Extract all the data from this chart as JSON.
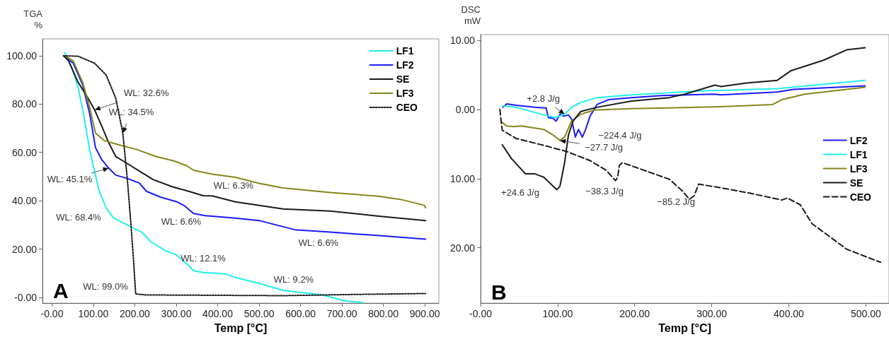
{
  "chart_data": [
    {
      "type": "line",
      "title": "A",
      "xlabel": "Temp [°C]",
      "ylabel": "TGA\n%",
      "xlim": [
        -23,
        934
      ],
      "ylim": [
        -2.4,
        107
      ],
      "xticks": [
        {
          "value": 0,
          "label": "-0.00"
        },
        {
          "value": 100,
          "label": "100.00"
        },
        {
          "value": 200,
          "label": "200.00"
        },
        {
          "value": 300,
          "label": "300.00"
        },
        {
          "value": 400,
          "label": "400.00"
        },
        {
          "value": 500,
          "label": "500.00"
        },
        {
          "value": 600,
          "label": "600.00"
        },
        {
          "value": 700,
          "label": "700.00"
        },
        {
          "value": 800,
          "label": "800.00"
        },
        {
          "value": 900,
          "label": "900.00"
        }
      ],
      "yticks": [
        {
          "value": 0,
          "label": "-0.00"
        },
        {
          "value": 20,
          "label": "20.00"
        },
        {
          "value": 40,
          "label": "40.00"
        },
        {
          "value": 60,
          "label": "60.00"
        },
        {
          "value": 80,
          "label": "80.00"
        },
        {
          "value": 100,
          "label": "100.00"
        }
      ],
      "grid": false,
      "legend": "top right",
      "marker": "none",
      "line_style": "solid",
      "series": [
        {
          "name": "LF1",
          "color": "#22eeee",
          "x": [
            31,
            46,
            63,
            77,
            91,
            103,
            114,
            131,
            148,
            188,
            217,
            239,
            274,
            302,
            325,
            342,
            370,
            387,
            421,
            439,
            500,
            558,
            654,
            706,
            751
          ],
          "values": [
            101.3,
            96,
            87,
            75,
            61,
            52,
            44,
            37,
            33,
            29.4,
            27,
            23,
            19.3,
            17.4,
            14,
            11,
            10.1,
            10.1,
            9.6,
            8.4,
            5.8,
            2.9,
            1,
            -1.4,
            -2.2
          ]
        },
        {
          "name": "LF2",
          "color": "#1a1aff",
          "x": [
            28,
            51,
            74,
            91,
            105,
            120,
            137,
            154,
            182,
            211,
            228,
            262,
            302,
            319,
            342,
            370,
            443,
            500,
            586,
            672,
            785,
            902
          ],
          "values": [
            100,
            97,
            88,
            76,
            62,
            57,
            53.5,
            50.6,
            49.2,
            47.3,
            43.9,
            41.5,
            39.5,
            38,
            34.7,
            33.8,
            32.8,
            31.8,
            28,
            27,
            25.6,
            24.1
          ]
        },
        {
          "name": "SE",
          "color": "#1a1a1a",
          "x": [
            28,
            40,
            63,
            85,
            103,
            120,
            137,
            154,
            177,
            217,
            245,
            290,
            330,
            365,
            387,
            443,
            558,
            672,
            785,
            902
          ],
          "values": [
            100,
            97.9,
            89,
            83,
            77.6,
            70.9,
            64,
            58.3,
            55.9,
            51.6,
            48.7,
            45.8,
            43.9,
            42.1,
            42,
            39.5,
            36.6,
            35.7,
            33.7,
            31.8
          ]
        },
        {
          "name": "LF3",
          "color": "#85851a",
          "x": [
            31,
            51,
            74,
            91,
            105,
            125,
            160,
            205,
            251,
            296,
            325,
            342,
            370,
            387,
            443,
            500,
            558,
            672,
            785,
            843,
            899,
            902
          ],
          "values": [
            100,
            97.9,
            89,
            78.6,
            68,
            65,
            63.2,
            61.2,
            58.3,
            56.4,
            54.5,
            52.6,
            51.6,
            51,
            49.7,
            47.2,
            45.3,
            43.4,
            41.9,
            40.5,
            38.1,
            37.1
          ]
        },
        {
          "name": "CEO",
          "color": "#1a1a1a",
          "line_style": "dotted",
          "x": [
            28,
            63,
            103,
            131,
            154,
            171,
            182,
            191,
            197,
            202,
            228,
            558,
            729,
            902
          ],
          "values": [
            100,
            99.8,
            96.9,
            92,
            82.4,
            68,
            48.7,
            29.4,
            15,
            1.4,
            1,
            0.7,
            1.2,
            1.6
          ]
        }
      ],
      "annotations": [
        {
          "text": "WL: 32.6%",
          "x": 103,
          "y": 77.6
        },
        {
          "text": "WL: 34.5%",
          "x": 171,
          "y": 68
        },
        {
          "text": "WL: 45.1%",
          "x": 137,
          "y": 53.5
        },
        "WL: 68.4%",
        "WL: 6.6%",
        "WL: 12.1%",
        "WL: 99.0%",
        "WL: 6.3%",
        "WL: 6.6%",
        "WL: 9.2%"
      ]
    },
    {
      "type": "line",
      "title": "B",
      "xlabel": "Temp [°C]",
      "ylabel": "DSC\nmW",
      "xlim": [
        0,
        530
      ],
      "ylim": [
        -28,
        10.8
      ],
      "xticks": [
        {
          "value": 0,
          "label": "-0.00"
        },
        {
          "value": 100,
          "label": "100.00"
        },
        {
          "value": 200,
          "label": "200.00"
        },
        {
          "value": 300,
          "label": "300.00"
        },
        {
          "value": 400,
          "label": "400.00"
        },
        {
          "value": 500,
          "label": "500.00"
        }
      ],
      "yticks": [
        {
          "value": -20,
          "label": "20.00"
        },
        {
          "value": -10,
          "label": "10.00"
        },
        {
          "value": 0,
          "label": "0.00"
        },
        {
          "value": 10,
          "label": "10.00"
        }
      ],
      "grid": false,
      "legend": "right",
      "marker": "none",
      "line_style": "solid",
      "series": [
        {
          "name": "LF2",
          "color": "#1a1aff",
          "x": [
            29,
            34,
            46,
            70,
            85,
            88,
            94,
            98,
            103,
            108,
            114,
            118,
            123,
            127,
            132,
            136,
            142,
            151,
            166,
            196,
            235,
            304,
            312,
            385,
            406,
            499
          ],
          "values": [
            0.3,
            0.8,
            0.6,
            0.3,
            0.2,
            -1.2,
            -1.3,
            -1.7,
            -0.7,
            -1.0,
            -0.8,
            -1.4,
            -4.0,
            -2.9,
            -4.0,
            -3.0,
            -1.0,
            0.7,
            1.4,
            1.7,
            2.0,
            2.2,
            2.1,
            2.5,
            2.9,
            3.4
          ]
        },
        {
          "name": "LF1",
          "color": "#22eeee",
          "x": [
            29,
            46,
            82,
            97,
            109,
            118,
            130,
            151,
            196,
            245,
            295,
            385,
            499
          ],
          "values": [
            0.5,
            0.3,
            -0.8,
            -1.2,
            -0.7,
            0.3,
            1.0,
            1.7,
            2.1,
            2.4,
            2.7,
            3.0,
            4.2
          ]
        },
        {
          "name": "LF3",
          "color": "#85851a",
          "x": [
            28,
            34,
            43,
            52,
            82,
            94,
            103,
            109,
            118,
            130,
            148,
            196,
            245,
            312,
            379,
            391,
            421,
            499
          ],
          "values": [
            -1.9,
            -2.4,
            -2.5,
            -2.4,
            -2.9,
            -3.7,
            -4.5,
            -4.0,
            -1.7,
            -0.7,
            -0.1,
            0.1,
            0.2,
            0.4,
            0.7,
            1.4,
            2.2,
            3.2
          ]
        },
        {
          "name": "SE",
          "color": "#1a1a1a",
          "x": [
            28,
            40,
            58,
            70,
            82,
            94,
            99,
            103,
            109,
            114,
            120,
            130,
            151,
            196,
            245,
            265,
            304,
            312,
            345,
            385,
            403,
            445,
            475,
            499
          ],
          "values": [
            -5.1,
            -7.1,
            -9.3,
            -9.3,
            -9.8,
            -11.1,
            -11.6,
            -11.1,
            -7.7,
            -3.7,
            -1.7,
            -0.3,
            0.3,
            1.2,
            1.7,
            2.2,
            3.5,
            3.3,
            3.8,
            4.2,
            5.6,
            7.1,
            8.6,
            8.9
          ]
        },
        {
          "name": "CEO",
          "color": "#1a1a1a",
          "line_style": "dashed",
          "x": [
            25,
            28,
            46,
            82,
            112,
            142,
            163,
            175,
            178,
            180,
            184,
            245,
            262,
            271,
            277,
            283,
            310,
            349,
            391,
            398,
            415,
            430,
            475,
            519
          ],
          "values": [
            0,
            -3.0,
            -4.2,
            -5.2,
            -6.1,
            -7.4,
            -8.8,
            -10.3,
            -9.8,
            -8.1,
            -7.7,
            -10.1,
            -11.8,
            -13.0,
            -12.5,
            -10.8,
            -11.3,
            -12.1,
            -13.1,
            -12.8,
            -13.8,
            -16.5,
            -20.2,
            -22.1
          ]
        }
      ],
      "annotations": [
        {
          "text": "+2.8 J/g",
          "x": 109,
          "y": -0.7
        },
        "−224.4 J/g",
        {
          "text": "−27.7 J/g",
          "x": 103,
          "y": -4.5
        },
        "+24.6 J/g",
        "−38.3 J/g",
        "−85.2 J/g"
      ]
    }
  ]
}
